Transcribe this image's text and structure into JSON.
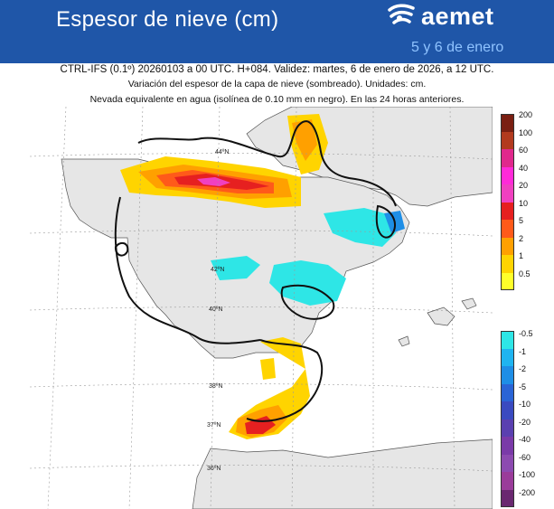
{
  "header": {
    "title": "Espesor de nieve (cm)",
    "brand": "aemet",
    "dates": "5 y 6 de enero"
  },
  "subtitle": {
    "line1": "CTRL-IFS (0.1º) 20260103 a 00 UTC. H+084. Validez: martes, 6 de enero de 2026, a 12 UTC.",
    "line2": "Variación del espesor de la capa de nieve (sombreado). Unidades: cm.",
    "line3": "Nevada equivalente en agua (isolínea de 0.10 mm en negro). En las 24 horas anteriores."
  },
  "map": {
    "lat_labels": [
      "44ºN",
      "42ºN",
      "40ºN",
      "38ºN",
      "37ºN",
      "36ºN"
    ],
    "colors": {
      "background": "#ffffff",
      "ocean": "#ffffff",
      "grid": "#9a9a9a",
      "isoline": "#111111"
    }
  },
  "legend_positive": {
    "ticks": [
      "200",
      "100",
      "60",
      "40",
      "20",
      "10",
      "5",
      "2",
      "1",
      "0.5"
    ],
    "colors": [
      "#7a1f12",
      "#b23a1e",
      "#e0288c",
      "#ff2ad8",
      "#f040c0",
      "#e62020",
      "#ff5a1a",
      "#ffa000",
      "#ffd400",
      "#ffff2a"
    ]
  },
  "legend_negative": {
    "ticks": [
      "-0.5",
      "-1",
      "-2",
      "-5",
      "-10",
      "-20",
      "-40",
      "-60",
      "-100",
      "-200"
    ],
    "colors": [
      "#2ee6e6",
      "#1fb4f0",
      "#1e8ee6",
      "#2a64d6",
      "#3a4ac0",
      "#5a40b0",
      "#7a3aa8",
      "#8c4ab0",
      "#9a3c9a",
      "#6a2870"
    ]
  }
}
